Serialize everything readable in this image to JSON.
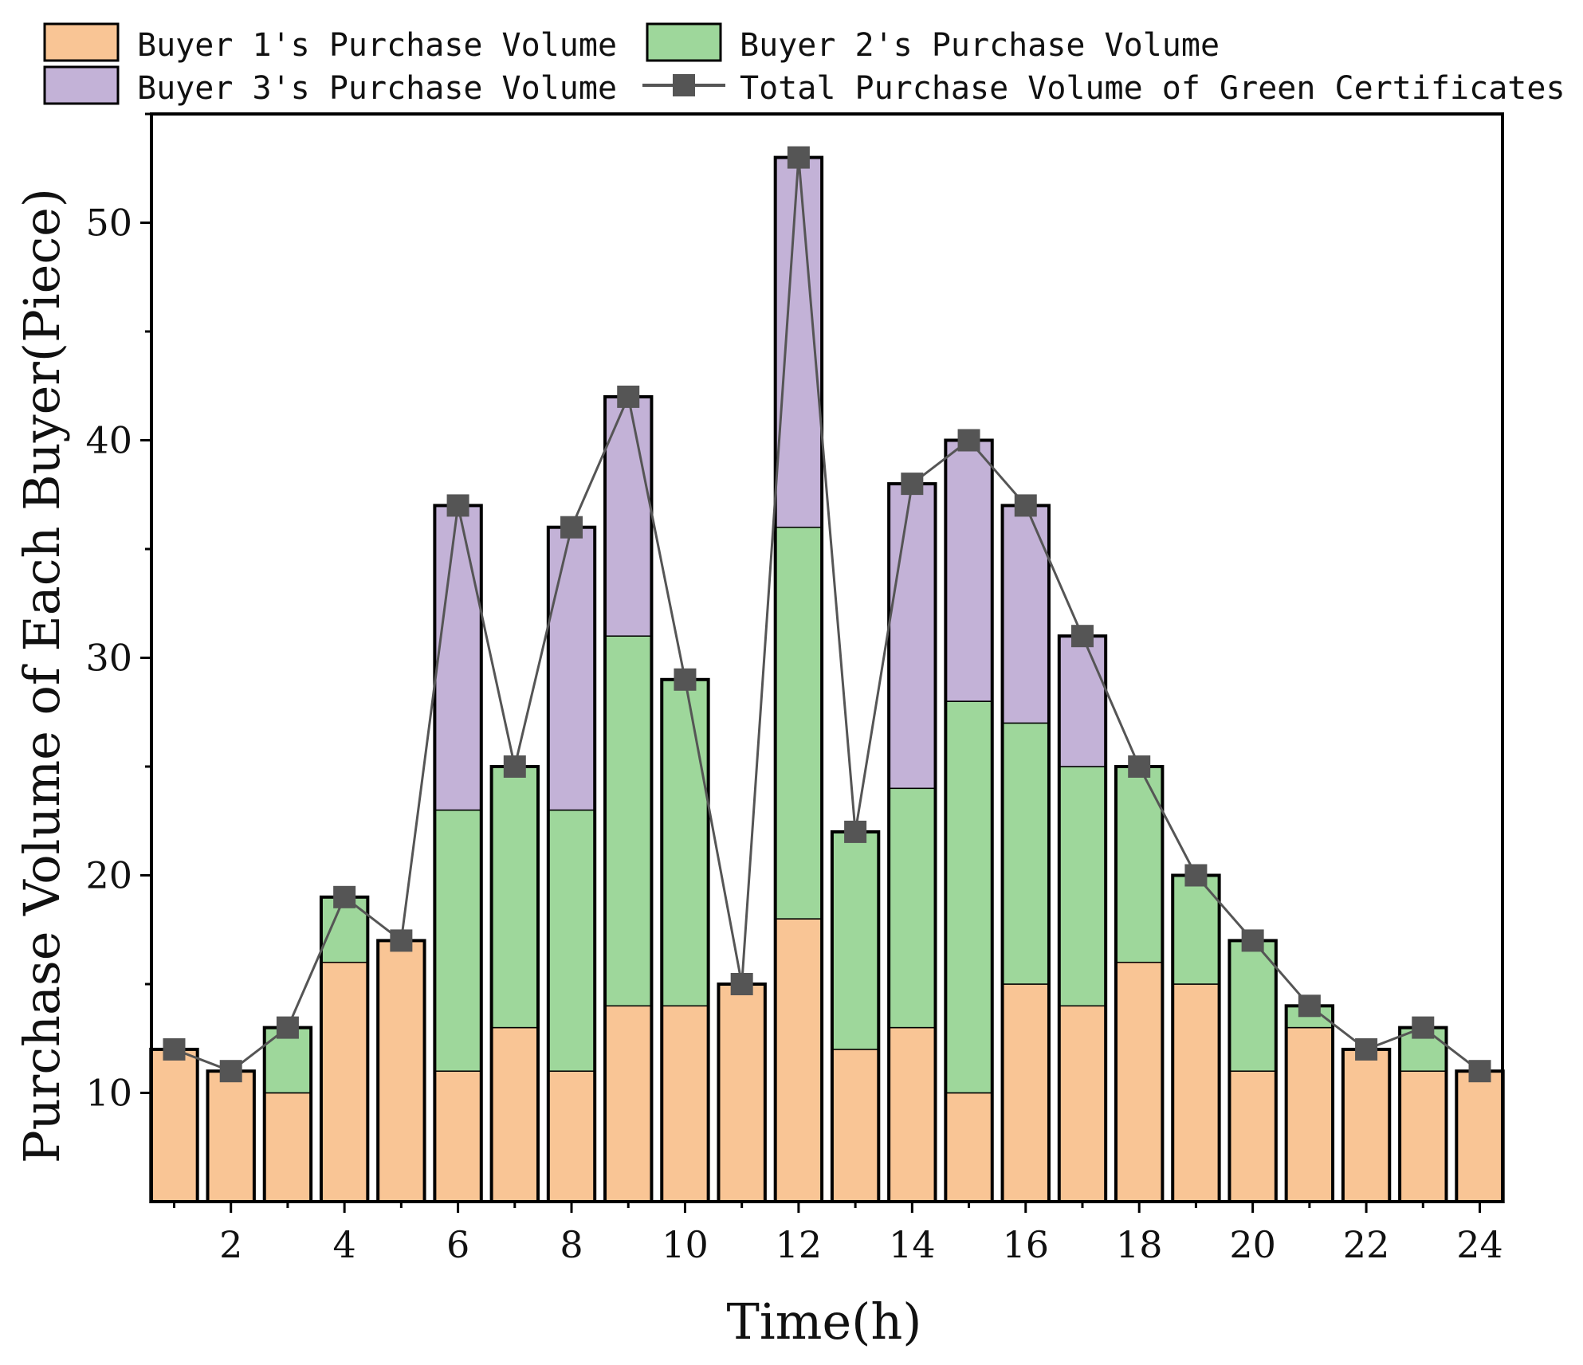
{
  "chart_data": {
    "type": "bar",
    "stacked": true,
    "categories": [
      1,
      2,
      3,
      4,
      5,
      6,
      7,
      8,
      9,
      10,
      11,
      12,
      13,
      14,
      15,
      16,
      17,
      18,
      19,
      20,
      21,
      22,
      23,
      24
    ],
    "series": [
      {
        "name": "Buyer 1's Purchase Volume",
        "color": "#F9C595",
        "values": [
          12,
          11,
          10,
          16,
          17,
          11,
          13,
          11,
          14,
          14,
          15,
          18,
          12,
          13,
          10,
          15,
          14,
          16,
          15,
          11,
          13,
          12,
          11,
          11
        ]
      },
      {
        "name": "Buyer 2's Purchase Volume",
        "color": "#9ED79B",
        "values": [
          0,
          0,
          3,
          3,
          0,
          12,
          12,
          12,
          17,
          15,
          0,
          18,
          10,
          11,
          18,
          12,
          11,
          9,
          5,
          6,
          1,
          0,
          2,
          0
        ]
      },
      {
        "name": "Buyer 3's Purchase Volume",
        "color": "#C3B2D7",
        "values": [
          0,
          0,
          0,
          0,
          0,
          14,
          0,
          13,
          11,
          0,
          0,
          17,
          0,
          14,
          12,
          10,
          6,
          0,
          0,
          0,
          0,
          0,
          0,
          0
        ]
      }
    ],
    "line": {
      "name": "Total Purchase Volume of Green Certificates",
      "color": "#555555",
      "values": [
        12,
        11,
        13,
        19,
        17,
        37,
        25,
        36,
        42,
        29,
        15,
        53,
        22,
        38,
        40,
        37,
        31,
        25,
        20,
        17,
        14,
        12,
        13,
        11
      ]
    },
    "xlabel": "Time(h)",
    "ylabel": "Purchase Volume of Each Buyer(Piece)",
    "xlim": [
      0.6,
      24.4
    ],
    "ylim": [
      5,
      55
    ],
    "xticks": [
      2,
      4,
      6,
      8,
      10,
      12,
      14,
      16,
      18,
      20,
      22,
      24
    ],
    "yticks": [
      10,
      20,
      30,
      40,
      50
    ],
    "legend_position": "top"
  }
}
